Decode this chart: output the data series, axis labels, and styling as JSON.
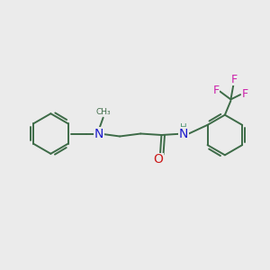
{
  "background_color": "#ebebeb",
  "bond_color": "#3d6b47",
  "bond_width": 1.4,
  "nitrogen_color": "#1a1acc",
  "oxygen_color": "#cc1a1a",
  "fluorine_color": "#cc22aa",
  "figsize": [
    3.0,
    3.0
  ],
  "dpi": 100,
  "xlim": [
    0,
    10
  ],
  "ylim": [
    0,
    10
  ]
}
